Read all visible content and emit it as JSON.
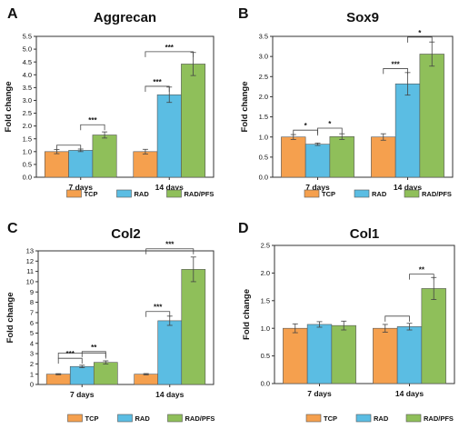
{
  "figure": {
    "panels": [
      "A",
      "B",
      "C",
      "D"
    ]
  },
  "legend": {
    "entries": [
      "TCP",
      "RAD",
      "RAD/PFS"
    ]
  },
  "colors": {
    "TCP": "#f5a04e",
    "RAD": "#5bbde3",
    "RAD/PFS": "#8fbf5a",
    "axis": "#333333",
    "bar_edge": "#555555"
  },
  "chart_data": [
    {
      "panel": "A",
      "type": "bar",
      "title": "Aggrecan",
      "xlabel": "",
      "ylabel": "Fold change",
      "categories": [
        "7 days",
        "14 days"
      ],
      "series": [
        {
          "name": "TCP",
          "values": [
            1.0,
            1.0
          ],
          "errors": [
            0.08,
            0.09
          ]
        },
        {
          "name": "RAD",
          "values": [
            1.05,
            3.22
          ],
          "errors": [
            0.05,
            0.3
          ]
        },
        {
          "name": "RAD/PFS",
          "values": [
            1.65,
            4.42
          ],
          "errors": [
            0.12,
            0.45
          ]
        }
      ],
      "ylim": [
        0,
        5.5
      ],
      "yticks": [
        "0.0",
        "0.5",
        "1.0",
        "1.5",
        "2.0",
        "2.5",
        "3.0",
        "3.5",
        "4.0",
        "4.5",
        "5.0",
        "5.5"
      ],
      "grid": false,
      "significance": [
        "***",
        "***",
        "***"
      ]
    },
    {
      "panel": "B",
      "type": "bar",
      "title": "Sox9",
      "xlabel": "",
      "ylabel": "Fold change",
      "categories": [
        "7 days",
        "14 days"
      ],
      "series": [
        {
          "name": "TCP",
          "values": [
            1.0,
            1.0
          ],
          "errors": [
            0.06,
            0.08
          ]
        },
        {
          "name": "RAD",
          "values": [
            0.82,
            2.32
          ],
          "errors": [
            0.03,
            0.28
          ]
        },
        {
          "name": "RAD/PFS",
          "values": [
            1.01,
            3.06
          ],
          "errors": [
            0.07,
            0.3
          ]
        }
      ],
      "ylim": [
        0,
        3.5
      ],
      "yticks": [
        "0.0",
        "0.5",
        "1.0",
        "1.5",
        "2.0",
        "2.5",
        "3.0",
        "3.5"
      ],
      "grid": false,
      "significance": [
        "*",
        "*",
        "***",
        "*"
      ]
    },
    {
      "panel": "C",
      "type": "bar",
      "title": "Col2",
      "xlabel": "",
      "ylabel": "Fold change",
      "categories": [
        "7 days",
        "14 days"
      ],
      "series": [
        {
          "name": "TCP",
          "values": [
            1.0,
            1.0
          ],
          "errors": [
            0.05,
            0.06
          ]
        },
        {
          "name": "RAD",
          "values": [
            1.75,
            6.2
          ],
          "errors": [
            0.12,
            0.45
          ]
        },
        {
          "name": "RAD/PFS",
          "values": [
            2.15,
            11.2
          ],
          "errors": [
            0.15,
            1.2
          ]
        }
      ],
      "ylim": [
        0,
        13
      ],
      "yticks": [
        "0",
        "1",
        "2",
        "3",
        "4",
        "5",
        "6",
        "7",
        "8",
        "9",
        "10",
        "11",
        "12",
        "13"
      ],
      "grid": false,
      "significance": [
        "***",
        "**",
        "***",
        "***"
      ]
    },
    {
      "panel": "D",
      "type": "bar",
      "title": "Col1",
      "xlabel": "",
      "ylabel": "Fold change",
      "categories": [
        "7 days",
        "14 days"
      ],
      "series": [
        {
          "name": "TCP",
          "values": [
            1.0,
            1.0
          ],
          "errors": [
            0.08,
            0.07
          ]
        },
        {
          "name": "RAD",
          "values": [
            1.07,
            1.03
          ],
          "errors": [
            0.05,
            0.06
          ]
        },
        {
          "name": "RAD/PFS",
          "values": [
            1.05,
            1.72
          ],
          "errors": [
            0.08,
            0.2
          ]
        }
      ],
      "ylim": [
        0,
        2.5
      ],
      "yticks": [
        "0.0",
        "0.5",
        "1.0",
        "1.5",
        "2.0",
        "2.5"
      ],
      "grid": false,
      "significance": [
        "**"
      ]
    }
  ]
}
